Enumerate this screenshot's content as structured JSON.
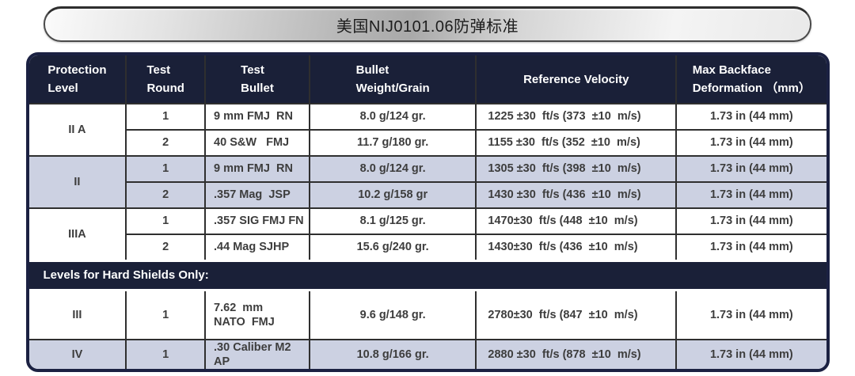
{
  "title": "美国NIJ0101.06防弹标准",
  "colors": {
    "header_navy": "#1a2038",
    "row_lavender": "#ccd1e2",
    "row_white": "#ffffff",
    "grid_line": "#2f2f2f",
    "body_text": "#3d3d3d"
  },
  "table": {
    "headers": [
      {
        "line1": "Protection",
        "line2": "Level"
      },
      {
        "line1": "Test",
        "line2": "Round"
      },
      {
        "line1": "Test",
        "line2": "Bullet"
      },
      {
        "line1": "Bullet",
        "line2": "Weight/Grain"
      },
      {
        "line1": "Reference Velocity"
      },
      {
        "line1": "Max Backface",
        "line2": "Deformation （mm）"
      }
    ],
    "groups": [
      {
        "level": "II A",
        "rounds": [
          {
            "round": "1",
            "bullet": "9 mm FMJ  RN",
            "weight": "8.0 g/124 gr.",
            "velocity": "1225 ±30  ft/s (373  ±10  m/s)",
            "deformation": "1.73 in (44 mm)"
          },
          {
            "round": "2",
            "bullet": "40 S&W   FMJ",
            "weight": "11.7 g/180 gr.",
            "velocity": "1155 ±30  ft/s (352  ±10  m/s)",
            "deformation": "1.73 in (44 mm)"
          }
        ]
      },
      {
        "level": "II",
        "rounds": [
          {
            "round": "1",
            "bullet": "9 mm FMJ  RN",
            "weight": "8.0 g/124 gr.",
            "velocity": "1305 ±30  ft/s (398  ±10  m/s)",
            "deformation": "1.73 in (44 mm)"
          },
          {
            "round": "2",
            "bullet": ".357 Mag  JSP",
            "weight": "10.2 g/158 gr",
            "velocity": "1430 ±30  ft/s (436  ±10  m/s)",
            "deformation": "1.73 in (44 mm)"
          }
        ]
      },
      {
        "level": "IIIA",
        "rounds": [
          {
            "round": "1",
            "bullet": ".357 SIG FMJ FN",
            "weight": "8.1 g/125 gr.",
            "velocity": "1470±30  ft/s (448  ±10  m/s)",
            "deformation": "1.73 in (44 mm)"
          },
          {
            "round": "2",
            "bullet": ".44 Mag SJHP",
            "weight": "15.6 g/240 gr.",
            "velocity": "1430±30  ft/s (436  ±10  m/s)",
            "deformation": "1.73 in (44 mm)"
          }
        ]
      }
    ],
    "section_banner": "Levels for Hard Shields Only:",
    "hard_groups": [
      {
        "level": "III",
        "rounds": [
          {
            "round": "1",
            "bullet": "7.62  mm\nNATO  FMJ",
            "weight": "9.6 g/148 gr.",
            "velocity": "2780±30  ft/s (847  ±10  m/s)",
            "deformation": "1.73 in (44 mm)"
          }
        ]
      },
      {
        "level": "IV",
        "rounds": [
          {
            "round": "1",
            "bullet": ".30 Caliber M2 AP",
            "weight": "10.8 g/166 gr.",
            "velocity": "2880 ±30  ft/s (878  ±10  m/s)",
            "deformation": "1.73 in (44 mm)"
          }
        ]
      }
    ]
  }
}
